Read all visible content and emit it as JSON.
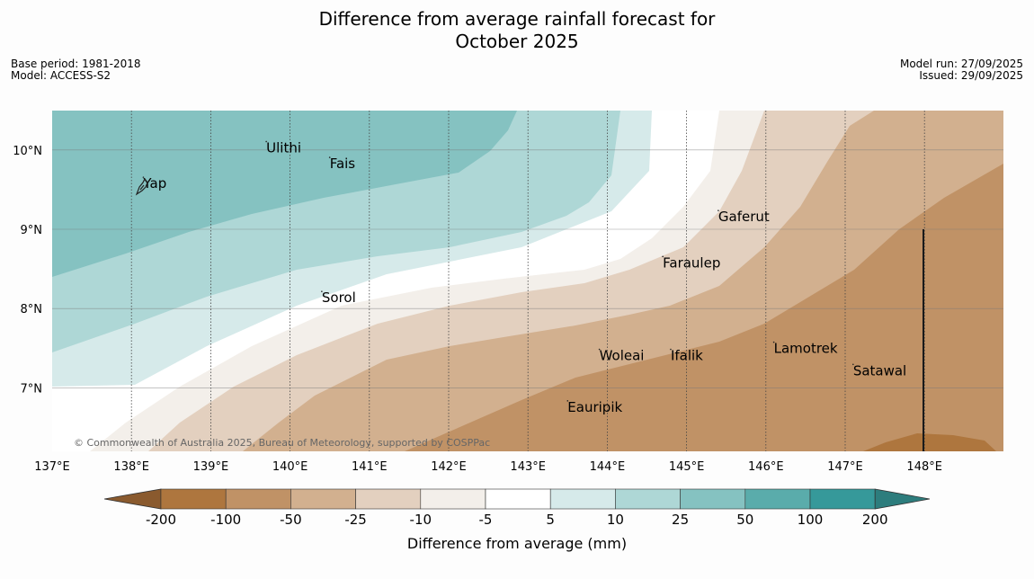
{
  "title_line1": "Difference from average rainfall forecast for",
  "title_line2": "October 2025",
  "base_period": "Base period: 1981-2018",
  "model": "Model: ACCESS-S2",
  "model_run": "Model run: 27/09/2025",
  "issued": "Issued: 29/09/2025",
  "copyright": "© Commonwealth of Australia 2025, Bureau of Meteorology, supported by COSPPac",
  "map": {
    "lon_min": 137.0,
    "lon_max": 149.0,
    "lat_min": 6.2,
    "lat_max": 10.5,
    "lon_ticks": [
      {
        "value": 137,
        "label": "137°E"
      },
      {
        "value": 138,
        "label": "138°E"
      },
      {
        "value": 139,
        "label": "139°E"
      },
      {
        "value": 140,
        "label": "140°E"
      },
      {
        "value": 141,
        "label": "141°E"
      },
      {
        "value": 142,
        "label": "142°E"
      },
      {
        "value": 143,
        "label": "143°E"
      },
      {
        "value": 144,
        "label": "144°E"
      },
      {
        "value": 145,
        "label": "145°E"
      },
      {
        "value": 146,
        "label": "146°E"
      },
      {
        "value": 147,
        "label": "147°E"
      },
      {
        "value": 148,
        "label": "148°E"
      }
    ],
    "lat_ticks": [
      {
        "value": 10,
        "label": "10°N"
      },
      {
        "value": 9,
        "label": "9°N"
      },
      {
        "value": 8,
        "label": "8°N"
      },
      {
        "value": 7,
        "label": "7°N"
      }
    ],
    "places": [
      {
        "name": "Yap",
        "lon": 138.15,
        "lat": 9.52
      },
      {
        "name": "Ulithi",
        "lon": 139.7,
        "lat": 9.97
      },
      {
        "name": "Fais",
        "lon": 140.5,
        "lat": 9.77
      },
      {
        "name": "Gaferut",
        "lon": 145.4,
        "lat": 9.1
      },
      {
        "name": "Faraulep",
        "lon": 144.7,
        "lat": 8.52
      },
      {
        "name": "Sorol",
        "lon": 140.4,
        "lat": 8.08
      },
      {
        "name": "Woleai",
        "lon": 143.9,
        "lat": 7.35
      },
      {
        "name": "Ifalik",
        "lon": 144.8,
        "lat": 7.35
      },
      {
        "name": "Lamotrek",
        "lon": 146.1,
        "lat": 7.44
      },
      {
        "name": "Satawal",
        "lon": 147.1,
        "lat": 7.16
      },
      {
        "name": "Eauripik",
        "lon": 143.5,
        "lat": 6.7
      }
    ]
  },
  "colorbar": {
    "ticks": [
      "-200",
      "-100",
      "-50",
      "-25",
      "-10",
      "-5",
      "5",
      "10",
      "25",
      "50",
      "100",
      "200"
    ],
    "colors": [
      "#8a5a2e",
      "#ae763e",
      "#c09266",
      "#d2b08f",
      "#e3d0bf",
      "#f3efea",
      "#ffffff",
      "#d6eaea",
      "#aed7d6",
      "#85c2c1",
      "#5aacab",
      "#36999a",
      "#2d7d7d"
    ],
    "label": "Difference from average (mm)"
  }
}
